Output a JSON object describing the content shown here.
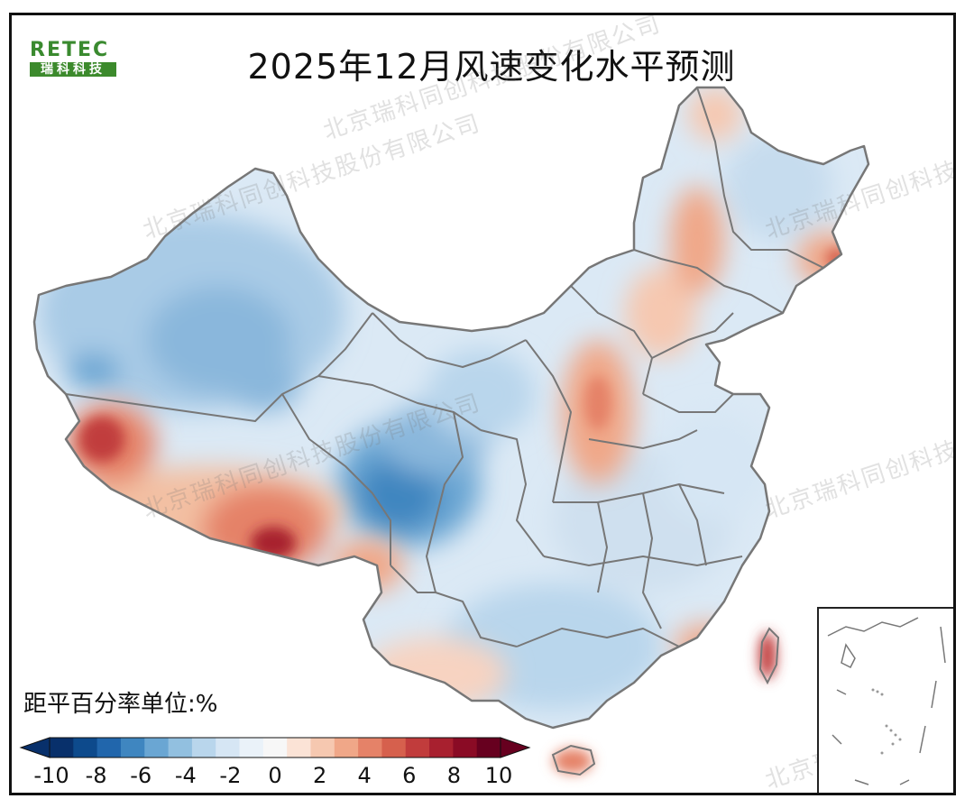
{
  "title": "2025年12月风速变化水平预测",
  "logo": {
    "top": "RETEC",
    "bottom": "瑞科科技"
  },
  "legend": {
    "title": "距平百分率单位:%",
    "ticks": [
      "-10",
      "-8",
      "-6",
      "-4",
      "-2",
      "0",
      "2",
      "4",
      "6",
      "8",
      "10"
    ],
    "colors": [
      "#08306b",
      "#0d4a8c",
      "#2166ac",
      "#3f86c0",
      "#6aa6d3",
      "#92c0e0",
      "#b9d6ec",
      "#d6e6f4",
      "#eaf2f9",
      "#f7f7f7",
      "#fbe3d6",
      "#f6c8b0",
      "#f0a788",
      "#e58268",
      "#d6604d",
      "#c13c3c",
      "#a8202f",
      "#8a0b25",
      "#67001f"
    ]
  },
  "watermark": "北京瑞科同创科技股份有限公司",
  "colors": {
    "border": "#777777",
    "frame": "#111111"
  }
}
